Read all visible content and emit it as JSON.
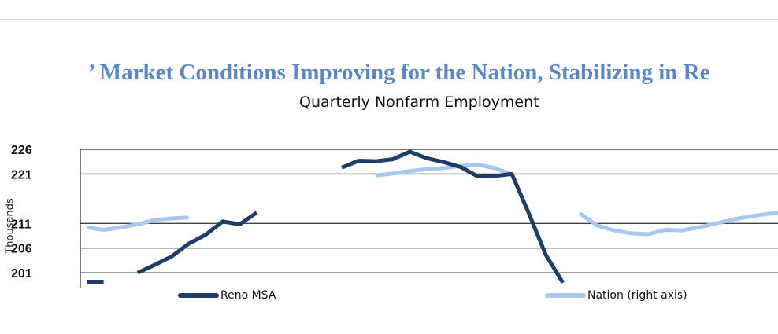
{
  "headline": "’ Market Conditions Improving for the Nation, Stabilizing in Re",
  "chart_data": {
    "type": "line",
    "title": "Quarterly Nonfarm Employment",
    "ylabel": "Thousands",
    "ylim": [
      198,
      226
    ],
    "yticks": [
      "226",
      "221",
      "211",
      "206",
      "201"
    ],
    "legend_placement": "bottom",
    "series": [
      {
        "name": "Reno MSA",
        "color": "#1f3e66",
        "y": [
          199.2,
          199.2,
          null,
          201.0,
          202.6,
          204.3,
          206.9,
          208.7,
          211.4,
          210.8,
          213.2,
          null,
          null,
          null,
          null,
          222.3,
          223.7,
          223.6,
          224.0,
          225.5,
          224.2,
          223.4,
          222.4,
          220.5,
          220.6,
          221.0,
          213.0,
          204.6,
          199.0
        ]
      },
      {
        "name": "Nation (right axis)",
        "color": "#a9c8ec",
        "y": [
          210.2,
          209.7,
          210.2,
          210.8,
          211.7,
          212.0,
          212.2,
          null,
          null,
          null,
          null,
          null,
          null,
          null,
          null,
          null,
          null,
          220.7,
          221.1,
          221.6,
          222.0,
          222.2,
          222.6,
          222.9,
          222.2,
          220.9,
          null,
          null,
          null,
          213.0,
          210.6,
          209.6,
          209.0,
          208.8,
          209.7,
          209.6,
          210.2,
          211.0,
          211.8,
          212.4,
          212.9,
          213.2
        ]
      }
    ]
  }
}
